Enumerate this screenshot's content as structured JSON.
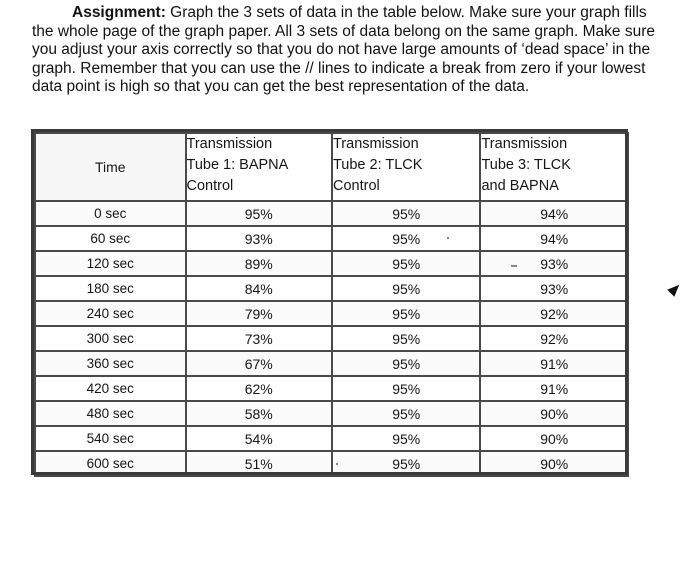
{
  "assignment": {
    "label": "Assignment:",
    "text": " Graph the 3 sets of data in the table below. Make sure your graph fills the whole page of the graph paper. All 3 sets of data belong on the same graph. Make sure you adjust your axis correctly so that you do not have large amounts of ‘dead space’ in the graph. Remember that you can use the // lines to indicate a break from zero if your lowest data point is high so that you can get the best representation of the data."
  },
  "table": {
    "headers": {
      "time": "Time",
      "tube1": [
        "Transmission",
        "Tube 1: BAPNA",
        "Control"
      ],
      "tube2": [
        "Transmission",
        "Tube 2: TLCK",
        "Control"
      ],
      "tube3": [
        "Transmission",
        "Tube 3: TLCK",
        "and BAPNA"
      ]
    },
    "rows": [
      {
        "time": "0 sec",
        "tube1": "95%",
        "tube2": "95%",
        "tube3": "94%"
      },
      {
        "time": "60 sec",
        "tube1": "93%",
        "tube2": "95%",
        "tube3": "94%"
      },
      {
        "time": "120 sec",
        "tube1": "89%",
        "tube2": "95%",
        "tube3": "93%"
      },
      {
        "time": "180 sec",
        "tube1": "84%",
        "tube2": "95%",
        "tube3": "93%"
      },
      {
        "time": "240 sec",
        "tube1": "79%",
        "tube2": "95%",
        "tube3": "92%"
      },
      {
        "time": "300 sec",
        "tube1": "73%",
        "tube2": "95%",
        "tube3": "92%"
      },
      {
        "time": "360 sec",
        "tube1": "67%",
        "tube2": "95%",
        "tube3": "91%"
      },
      {
        "time": "420 sec",
        "tube1": "62%",
        "tube2": "95%",
        "tube3": "91%"
      },
      {
        "time": "480 sec",
        "tube1": "58%",
        "tube2": "95%",
        "tube3": "90%"
      },
      {
        "time": "540 sec",
        "tube1": "54%",
        "tube2": "95%",
        "tube3": "90%"
      },
      {
        "time": "600 sec",
        "tube1": "51%",
        "tube2": "95%",
        "tube3": "90%"
      }
    ]
  }
}
